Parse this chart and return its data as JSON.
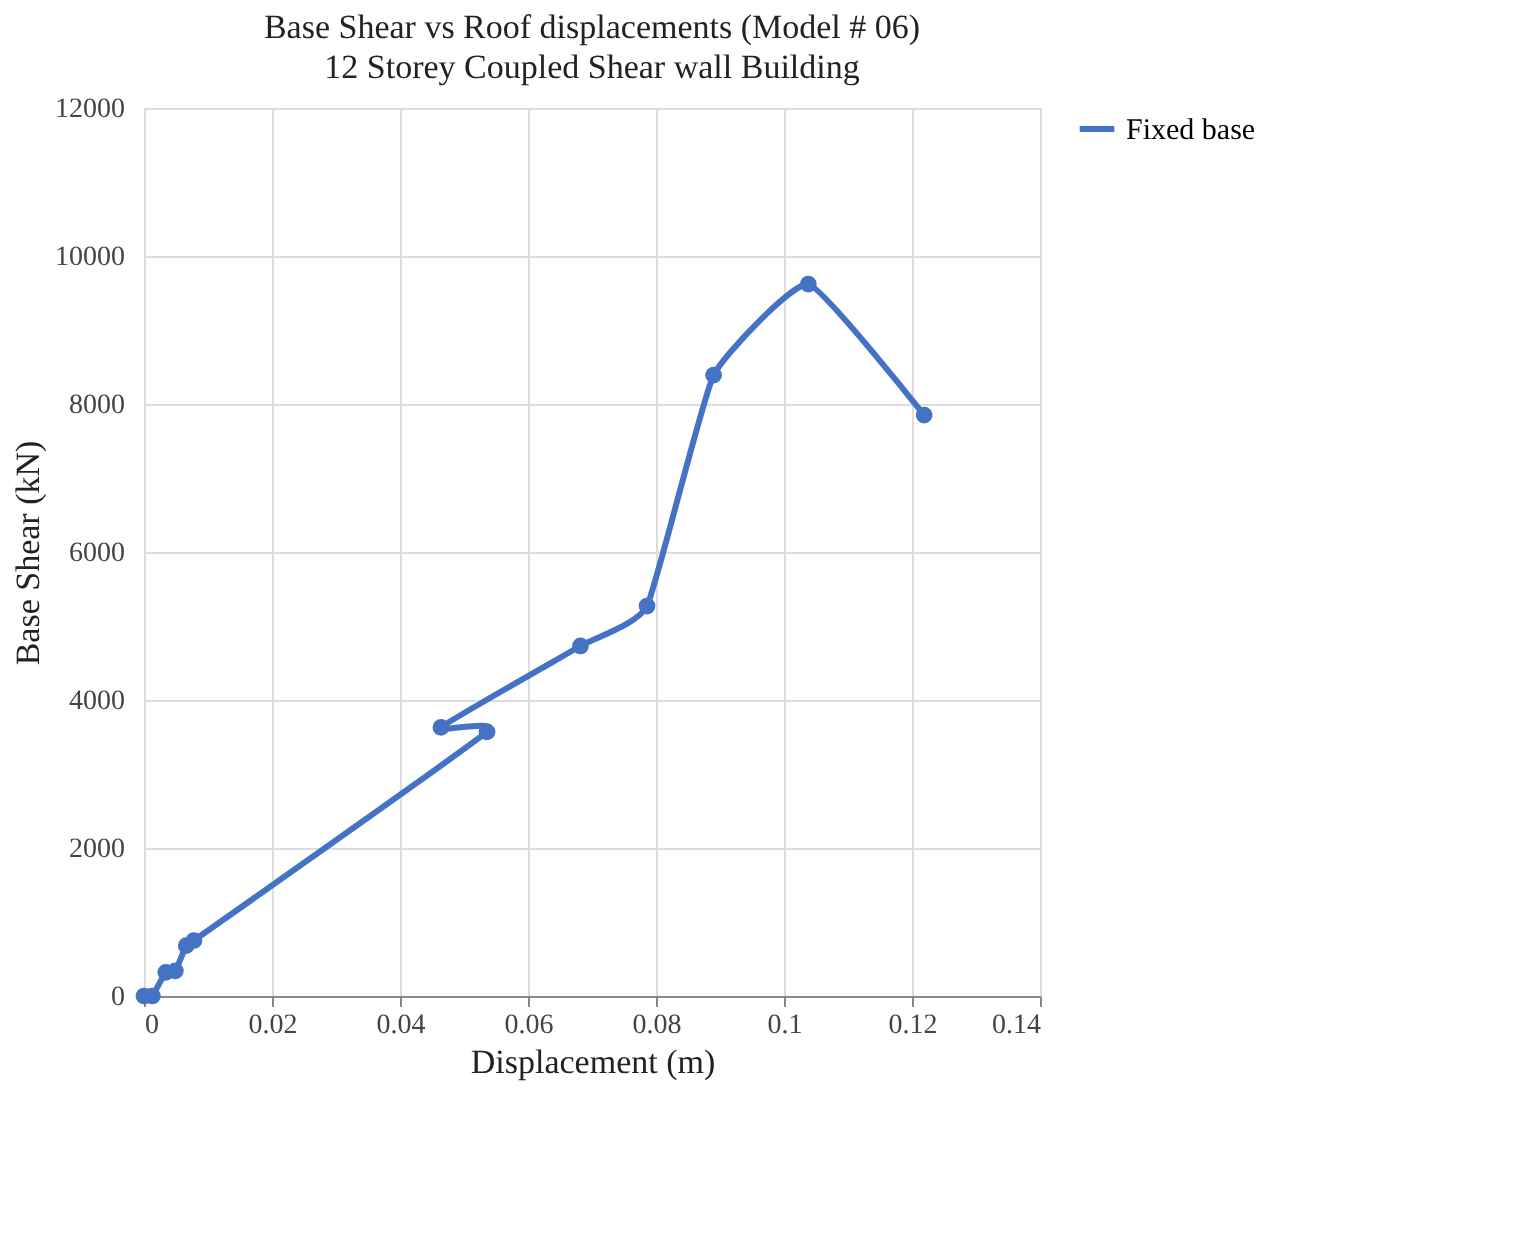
{
  "chart_data": {
    "type": "line",
    "title": "Base Shear vs Roof displacements (Model # 06)",
    "subtitle": "12 Storey Coupled Shear wall Building",
    "xlabel": "Displacement (m)",
    "ylabel": "Base Shear (kN)",
    "series": [
      {
        "name": "Fixed base",
        "color": "#4472c4",
        "x": [
          0,
          0.0013,
          0.0034,
          0.0049,
          0.0066,
          0.0078,
          0.0536,
          0.0464,
          0.0682,
          0.0786,
          0.089,
          0.1038,
          0.1219
        ],
        "values": [
          0,
          0,
          320,
          340,
          680,
          750,
          3570,
          3630,
          4730,
          5270,
          8390,
          9620,
          7850
        ]
      }
    ],
    "xlim": [
      0,
      0.14
    ],
    "xticks": [
      0,
      0.02,
      0.04,
      0.06,
      0.08,
      0.1,
      0.12,
      0.14
    ],
    "ylim": [
      0,
      12000
    ],
    "yticks": [
      0,
      2000,
      4000,
      6000,
      8000,
      10000,
      12000
    ],
    "grid": true,
    "legend": "right",
    "marker": "circle",
    "line_style": "solid"
  }
}
